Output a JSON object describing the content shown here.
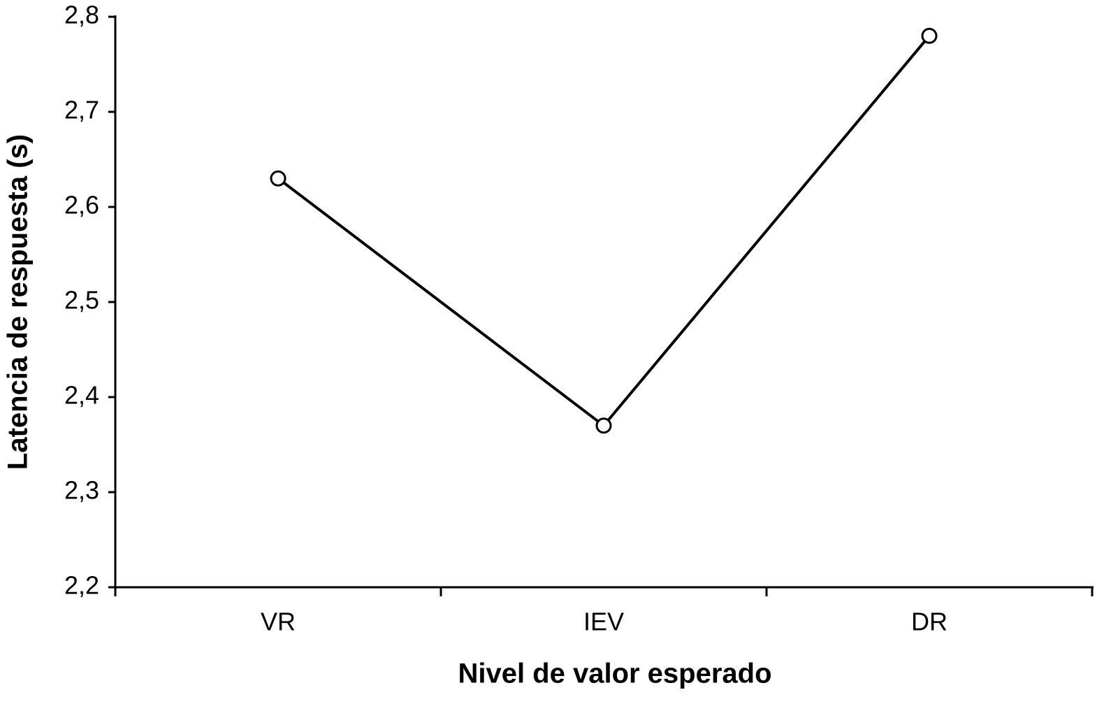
{
  "chart_data": {
    "type": "line",
    "x_label": "Nivel de valor esperado",
    "y_label": "Latencia de respuesta (s)",
    "categories": [
      "VR",
      "IEV",
      "DR"
    ],
    "values": [
      2.63,
      2.37,
      2.78
    ],
    "color": "#000000",
    "ylim": [
      2.2,
      2.8
    ],
    "yticks": [
      {
        "value": 2.2,
        "label": "2,2"
      },
      {
        "value": 2.3,
        "label": "2,3"
      },
      {
        "value": 2.4,
        "label": "2,4"
      },
      {
        "value": 2.5,
        "label": "2,5"
      },
      {
        "value": 2.6,
        "label": "2,6"
      },
      {
        "value": 2.7,
        "label": "2,7"
      },
      {
        "value": 2.8,
        "label": "2,8"
      }
    ],
    "grid": false
  }
}
